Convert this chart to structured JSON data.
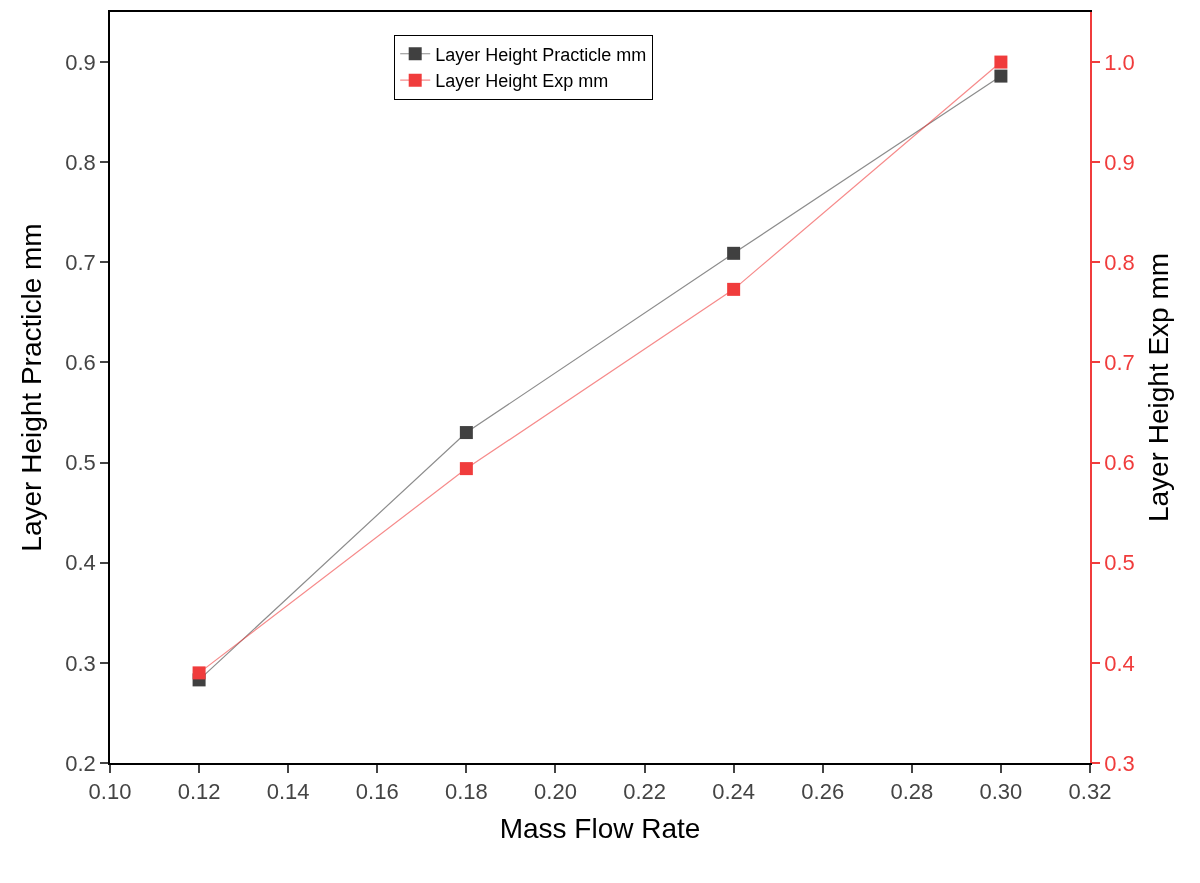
{
  "chart_data": {
    "type": "line",
    "xlabel": "Mass Flow Rate",
    "ylabel": "Layer Height Practicle mm",
    "y2label": "Layer Height Exp mm",
    "x": [
      0.12,
      0.18,
      0.24,
      0.3
    ],
    "series": [
      {
        "name": "Layer Height Practicle mm",
        "color": "#404040",
        "values": [
          0.283,
          0.53,
          0.709,
          0.886
        ]
      },
      {
        "name": "Layer Height Exp mm",
        "color": "#f03c3c",
        "values": [
          0.39,
          0.594,
          0.773,
          1.0
        ],
        "axis": "y2"
      }
    ],
    "xlim": [
      0.1,
      0.32
    ],
    "xticks": [
      {
        "value": 0.1,
        "label": "0.10"
      },
      {
        "value": 0.12,
        "label": "0.12"
      },
      {
        "value": 0.14,
        "label": "0.14"
      },
      {
        "value": 0.16,
        "label": "0.16"
      },
      {
        "value": 0.18,
        "label": "0.18"
      },
      {
        "value": 0.2,
        "label": "0.20"
      },
      {
        "value": 0.22,
        "label": "0.22"
      },
      {
        "value": 0.24,
        "label": "0.24"
      },
      {
        "value": 0.26,
        "label": "0.26"
      },
      {
        "value": 0.28,
        "label": "0.28"
      },
      {
        "value": 0.3,
        "label": "0.30"
      },
      {
        "value": 0.32,
        "label": "0.32"
      }
    ],
    "ylim": [
      0.2,
      0.95
    ],
    "yticks": [
      0.2,
      0.3,
      0.4,
      0.5,
      0.6,
      0.7,
      0.8,
      0.9
    ],
    "y2lim": [
      0.3,
      1.05
    ],
    "y2ticks": [
      0.3,
      0.4,
      0.5,
      0.6,
      0.7,
      0.8,
      0.9,
      {
        "value": 1.0,
        "label": "1.0"
      }
    ],
    "grid": false,
    "legend": "top",
    "marker": "square",
    "line_style": "solid"
  }
}
